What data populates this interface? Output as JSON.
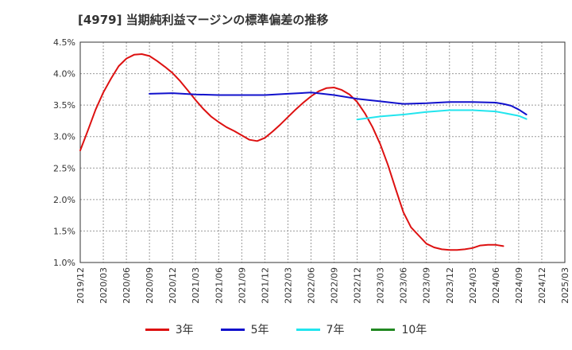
{
  "chart_data": {
    "type": "line",
    "title": "[4979]  当期純利益マージンの標準偏差の推移",
    "ylim": [
      1.0,
      4.5
    ],
    "y_ticks": [
      "4.5%",
      "4.0%",
      "3.5%",
      "3.0%",
      "2.5%",
      "2.0%",
      "1.5%",
      "1.0%"
    ],
    "x_ticks": [
      "2019/12",
      "2020/03",
      "2020/06",
      "2020/09",
      "2020/12",
      "2021/03",
      "2021/06",
      "2021/09",
      "2021/12",
      "2022/03",
      "2022/06",
      "2022/09",
      "2022/12",
      "2023/03",
      "2023/06",
      "2023/09",
      "2023/12",
      "2024/03",
      "2024/06",
      "2024/09",
      "2024/12",
      "2025/03"
    ],
    "grid": true,
    "legend_position": "bottom",
    "series": [
      {
        "name": "3年",
        "color": "#dd1111",
        "points": [
          [
            "2019/12",
            2.78
          ],
          [
            "2020/01",
            3.1
          ],
          [
            "2020/02",
            3.43
          ],
          [
            "2020/03",
            3.7
          ],
          [
            "2020/04",
            3.92
          ],
          [
            "2020/05",
            4.12
          ],
          [
            "2020/06",
            4.24
          ],
          [
            "2020/07",
            4.3
          ],
          [
            "2020/08",
            4.31
          ],
          [
            "2020/09",
            4.28
          ],
          [
            "2020/10",
            4.2
          ],
          [
            "2020/11",
            4.11
          ],
          [
            "2020/12",
            4.01
          ],
          [
            "2021/01",
            3.88
          ],
          [
            "2021/02",
            3.73
          ],
          [
            "2021/03",
            3.58
          ],
          [
            "2021/04",
            3.44
          ],
          [
            "2021/05",
            3.32
          ],
          [
            "2021/06",
            3.23
          ],
          [
            "2021/07",
            3.15
          ],
          [
            "2021/08",
            3.09
          ],
          [
            "2021/09",
            3.02
          ],
          [
            "2021/10",
            2.95
          ],
          [
            "2021/11",
            2.93
          ],
          [
            "2021/12",
            2.98
          ],
          [
            "2022/01",
            3.08
          ],
          [
            "2022/02",
            3.19
          ],
          [
            "2022/03",
            3.31
          ],
          [
            "2022/04",
            3.43
          ],
          [
            "2022/05",
            3.54
          ],
          [
            "2022/06",
            3.64
          ],
          [
            "2022/07",
            3.72
          ],
          [
            "2022/08",
            3.77
          ],
          [
            "2022/09",
            3.78
          ],
          [
            "2022/10",
            3.74
          ],
          [
            "2022/11",
            3.67
          ],
          [
            "2022/12",
            3.55
          ],
          [
            "2023/01",
            3.37
          ],
          [
            "2023/02",
            3.15
          ],
          [
            "2023/03",
            2.88
          ],
          [
            "2023/04",
            2.55
          ],
          [
            "2023/05",
            2.17
          ],
          [
            "2023/06",
            1.8
          ],
          [
            "2023/07",
            1.56
          ],
          [
            "2023/08",
            1.43
          ],
          [
            "2023/09",
            1.3
          ],
          [
            "2023/10",
            1.24
          ],
          [
            "2023/11",
            1.21
          ],
          [
            "2023/12",
            1.2
          ],
          [
            "2024/01",
            1.2
          ],
          [
            "2024/02",
            1.21
          ],
          [
            "2024/03",
            1.23
          ],
          [
            "2024/04",
            1.27
          ],
          [
            "2024/05",
            1.28
          ],
          [
            "2024/06",
            1.28
          ],
          [
            "2024/07",
            1.26
          ]
        ]
      },
      {
        "name": "5年",
        "color": "#1111cc",
        "points": [
          [
            "2020/09",
            3.68
          ],
          [
            "2020/12",
            3.69
          ],
          [
            "2021/03",
            3.67
          ],
          [
            "2021/06",
            3.66
          ],
          [
            "2021/09",
            3.66
          ],
          [
            "2021/12",
            3.66
          ],
          [
            "2022/03",
            3.68
          ],
          [
            "2022/06",
            3.7
          ],
          [
            "2022/09",
            3.66
          ],
          [
            "2022/12",
            3.6
          ],
          [
            "2023/03",
            3.56
          ],
          [
            "2023/06",
            3.52
          ],
          [
            "2023/09",
            3.53
          ],
          [
            "2023/12",
            3.55
          ],
          [
            "2024/03",
            3.55
          ],
          [
            "2024/06",
            3.54
          ],
          [
            "2024/07",
            3.52
          ],
          [
            "2024/08",
            3.49
          ],
          [
            "2024/09",
            3.43
          ],
          [
            "2024/10",
            3.35
          ]
        ]
      },
      {
        "name": "7年",
        "color": "#22e5ee",
        "points": [
          [
            "2022/12",
            3.27
          ],
          [
            "2023/03",
            3.32
          ],
          [
            "2023/06",
            3.35
          ],
          [
            "2023/09",
            3.39
          ],
          [
            "2023/12",
            3.42
          ],
          [
            "2024/03",
            3.42
          ],
          [
            "2024/06",
            3.4
          ],
          [
            "2024/09",
            3.33
          ],
          [
            "2024/10",
            3.28
          ]
        ]
      },
      {
        "name": "10年",
        "color": "#228822",
        "points": []
      }
    ]
  }
}
